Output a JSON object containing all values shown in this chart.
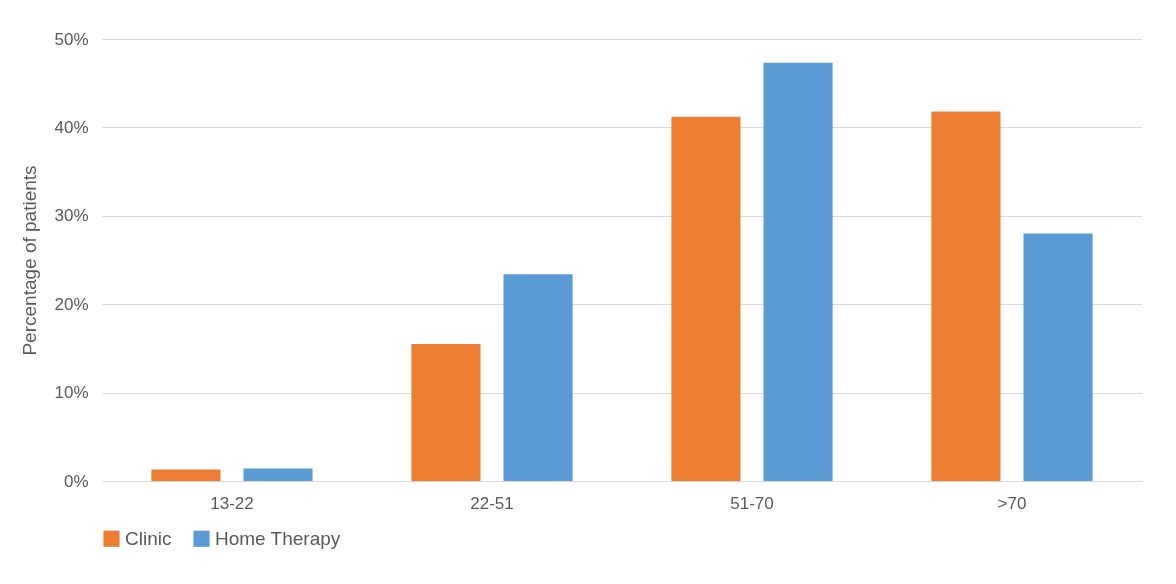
{
  "chart_data": {
    "type": "bar",
    "ylabel": "Percentage of patients",
    "categories": [
      "13-22",
      "22-51",
      "51-70",
      ">70"
    ],
    "series": [
      {
        "name": "Clinic",
        "color": "#ed7d31",
        "values": [
          1.3,
          15.5,
          41.2,
          41.8
        ]
      },
      {
        "name": "Home Therapy",
        "color": "#5b9bd5",
        "values": [
          1.4,
          23.4,
          47.3,
          28.0
        ]
      }
    ],
    "ylim": [
      0,
      50
    ],
    "yticks": [
      {
        "value": 0,
        "label": "0%"
      },
      {
        "value": 10,
        "label": "10%"
      },
      {
        "value": 20,
        "label": "20%"
      },
      {
        "value": 30,
        "label": "30%"
      },
      {
        "value": 40,
        "label": "40%"
      },
      {
        "value": 50,
        "label": "50%"
      }
    ],
    "grid": "y",
    "legend": "bottom"
  }
}
